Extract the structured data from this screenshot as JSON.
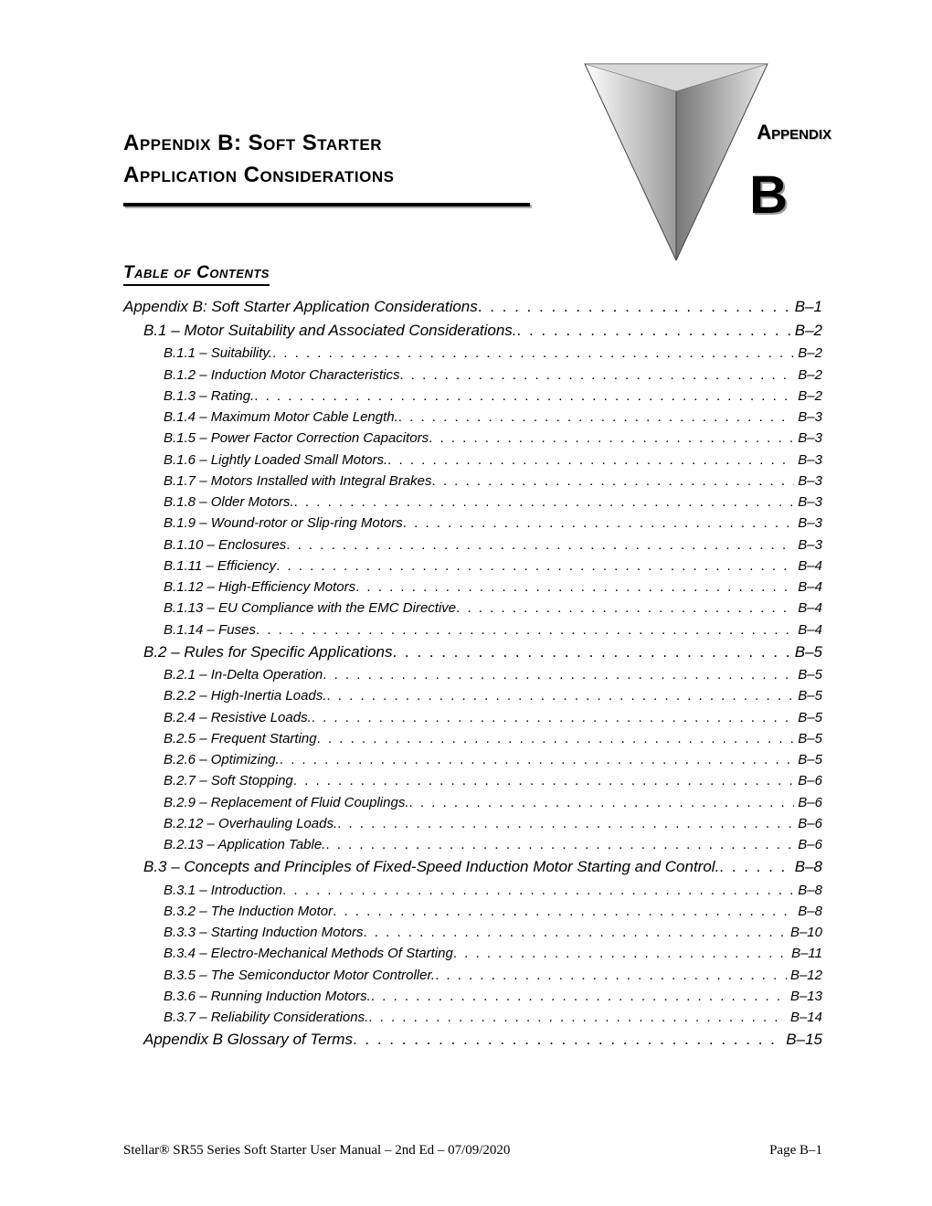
{
  "title_line1": "Appendix B:  Soft Starter",
  "title_line2": "Application Considerations",
  "badge_label": "Appendix",
  "badge_letter": "B",
  "toc_heading": "Table of Contents",
  "footer_left": "Stellar® SR55 Series Soft Starter User Manual – 2nd Ed – 07/09/2020",
  "footer_right": "Page B–1",
  "toc": [
    {
      "level": 0,
      "label": "Appendix B:  Soft Starter Application Considerations",
      "page": "B–1"
    },
    {
      "level": 1,
      "label": "B.1 – Motor Suitability and Associated Considerations.",
      "page": "B–2"
    },
    {
      "level": 2,
      "label": "B.1.1 – Suitability.",
      "page": "B–2"
    },
    {
      "level": 2,
      "label": "B.1.2 – Induction Motor Characteristics",
      "page": "B–2"
    },
    {
      "level": 2,
      "label": "B.1.3 – Rating.",
      "page": "B–2"
    },
    {
      "level": 2,
      "label": "B.1.4 – Maximum Motor Cable Length.",
      "page": "B–3"
    },
    {
      "level": 2,
      "label": "B.1.5 – Power Factor Correction Capacitors",
      "page": "B–3"
    },
    {
      "level": 2,
      "label": "B.1.6 – Lightly Loaded Small Motors.",
      "page": "B–3"
    },
    {
      "level": 2,
      "label": "B.1.7 – Motors Installed with Integral Brakes",
      "page": "B–3"
    },
    {
      "level": 2,
      "label": "B.1.8 – Older Motors.",
      "page": "B–3"
    },
    {
      "level": 2,
      "label": "B.1.9 – Wound-rotor or Slip-ring Motors",
      "page": "B–3"
    },
    {
      "level": 2,
      "label": "B.1.10 – Enclosures",
      "page": "B–3"
    },
    {
      "level": 2,
      "label": "B.1.11 – Efficiency",
      "page": "B–4"
    },
    {
      "level": 2,
      "label": "B.1.12 – High-Efficiency Motors",
      "page": "B–4"
    },
    {
      "level": 2,
      "label": "B.1.13 – EU Compliance with the EMC Directive",
      "page": "B–4"
    },
    {
      "level": 2,
      "label": "B.1.14 – Fuses",
      "page": "B–4"
    },
    {
      "level": 1,
      "label": "B.2 – Rules for Specific Applications",
      "page": "B–5"
    },
    {
      "level": 2,
      "label": "B.2.1 – In-Delta Operation",
      "page": "B–5"
    },
    {
      "level": 2,
      "label": "B.2.2 – High-Inertia Loads.",
      "page": "B–5"
    },
    {
      "level": 2,
      "label": "B.2.4 – Resistive Loads.",
      "page": "B–5"
    },
    {
      "level": 2,
      "label": "B.2.5 – Frequent Starting",
      "page": "B–5"
    },
    {
      "level": 2,
      "label": "B.2.6 – Optimizing.",
      "page": "B–5"
    },
    {
      "level": 2,
      "label": "B.2.7 – Soft Stopping",
      "page": "B–6"
    },
    {
      "level": 2,
      "label": "B.2.9 – Replacement of Fluid Couplings.",
      "page": "B–6"
    },
    {
      "level": 2,
      "label": "B.2.12 – Overhauling Loads.",
      "page": "B–6"
    },
    {
      "level": 2,
      "label": "B.2.13 – Application Table.",
      "page": "B–6"
    },
    {
      "level": 1,
      "label": "B.3 – Concepts and Principles of Fixed-Speed Induction Motor Starting and Control.",
      "page": "B–8"
    },
    {
      "level": 2,
      "label": "B.3.1 – Introduction",
      "page": "B–8"
    },
    {
      "level": 2,
      "label": "B.3.2 – The Induction Motor",
      "page": "B–8"
    },
    {
      "level": 2,
      "label": "B.3.3 – Starting Induction Motors",
      "page": "B–10"
    },
    {
      "level": 2,
      "label": "B.3.4 – Electro-Mechanical Methods Of Starting",
      "page": "B–11"
    },
    {
      "level": 2,
      "label": "B.3.5 – The Semiconductor Motor Controller.",
      "page": "B–12"
    },
    {
      "level": 2,
      "label": "B.3.6 – Running Induction Motors.",
      "page": "B–13"
    },
    {
      "level": 2,
      "label": "B.3.7 – Reliability Considerations.",
      "page": "B–14"
    },
    {
      "level": 1,
      "label": "Appendix B Glossary of Terms",
      "page": "B–15"
    }
  ]
}
